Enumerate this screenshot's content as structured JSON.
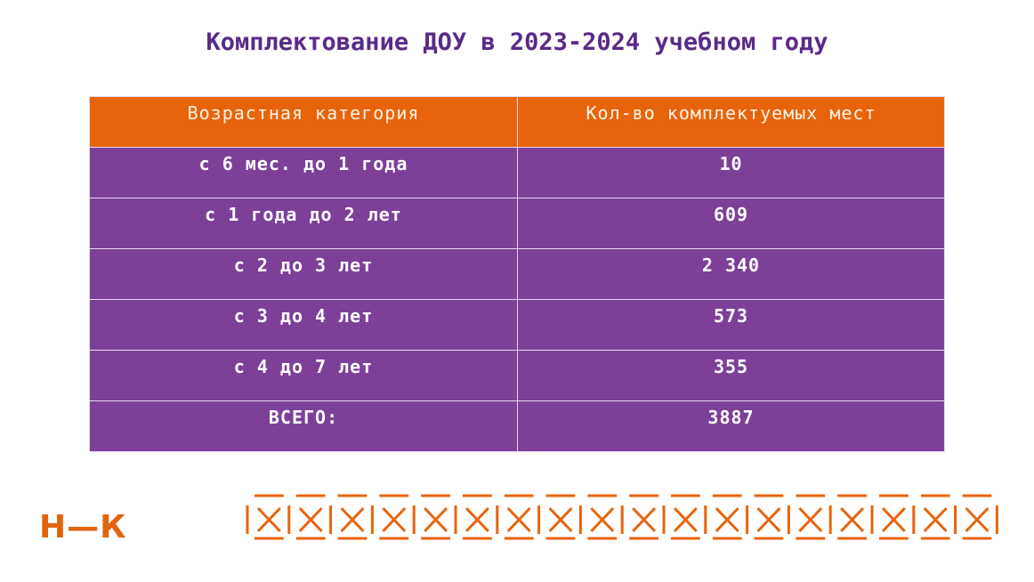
{
  "title": "Комплектование ДОУ в 2023-2024 учебном году",
  "table": {
    "headers": [
      "Возрастная категория",
      "Кол-во комплектуемых мест"
    ],
    "rows": [
      [
        "с 6 мес. до 1 года",
        "10"
      ],
      [
        "с 1 года до 2 лет",
        "609"
      ],
      [
        "с 2 до 3 лет",
        "2 340"
      ],
      [
        "с 3 до 4 лет",
        "573"
      ],
      [
        "с 4 до 7 лет",
        "355"
      ],
      [
        "ВСЕГО:",
        "3887"
      ]
    ]
  },
  "logo": "Н—К",
  "colors": {
    "accent": "#e8640c",
    "purple": "#7e3f98",
    "title": "#5a2a88"
  }
}
